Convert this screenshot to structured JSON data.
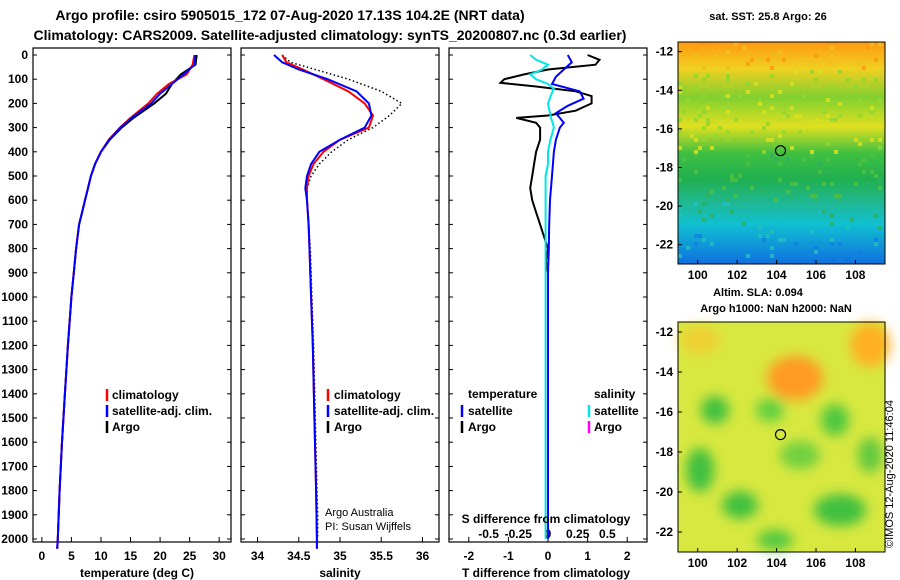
{
  "title": {
    "line1": "Argo profile: csiro 5905015_172 07-Aug-2020 17.13S 104.2E (NRT data)",
    "line2": "Climatology: CARS2009. Satellite-adjusted climatology: synTS_20200807.nc (0.3d earlier)"
  },
  "depth_ticks": [
    "0",
    "100",
    "200",
    "300",
    "400",
    "500",
    "600",
    "700",
    "800",
    "900",
    "1000",
    "1100",
    "1200",
    "1300",
    "1400",
    "1500",
    "1600",
    "1700",
    "1800",
    "1900",
    "2000"
  ],
  "colors": {
    "argo": "#000000",
    "climatology": "#ff0000",
    "satellite": "#0000ff",
    "sat_salinity": "#00e5e5",
    "argo_salinity": "#ff00ff"
  },
  "chart_data": [
    {
      "type": "line",
      "name": "temperature",
      "xlabel": "temperature (deg C)",
      "xticks": [
        "0",
        "5",
        "10",
        "15",
        "20",
        "25",
        "30"
      ],
      "xlim": [
        -1.5,
        32
      ],
      "ylim": [
        2080,
        0
      ],
      "legend": [
        "climatology",
        "satellite-adj. clim.",
        "Argo"
      ],
      "series": [
        {
          "name": "Argo",
          "depth": [
            0,
            40,
            80,
            120,
            160,
            200,
            260,
            300,
            350,
            400,
            450,
            500,
            550,
            600,
            650,
            700,
            800,
            900,
            1000,
            1200,
            1400,
            1600,
            1800,
            2000,
            2040
          ],
          "values": [
            26.2,
            26.0,
            23.5,
            22.0,
            21.0,
            19.0,
            15.5,
            13.5,
            11.5,
            10.0,
            9.0,
            8.3,
            7.8,
            7.3,
            6.8,
            6.3,
            5.8,
            5.4,
            5.0,
            4.4,
            3.9,
            3.4,
            3.0,
            2.7,
            2.6
          ]
        },
        {
          "name": "climatology",
          "depth": [
            0,
            40,
            80,
            120,
            160,
            200,
            260,
            300,
            350,
            400,
            450,
            500,
            550,
            600,
            650,
            700,
            800,
            900,
            1000,
            1200,
            1400,
            1600,
            1800,
            2000,
            2040
          ],
          "values": [
            25.8,
            25.5,
            24.5,
            21.5,
            19.5,
            18.0,
            15.0,
            13.2,
            11.3,
            10.0,
            9.0,
            8.3,
            7.8,
            7.3,
            6.8,
            6.3,
            5.8,
            5.4,
            5.0,
            4.4,
            3.9,
            3.4,
            3.0,
            2.7,
            2.6
          ]
        },
        {
          "name": "satellite-adj. clim.",
          "depth": [
            0,
            40,
            80,
            120,
            160,
            200,
            260,
            300,
            350,
            400,
            450,
            500,
            550,
            600,
            650,
            700,
            800,
            900,
            1000,
            1200,
            1400,
            1600,
            1800,
            2000,
            2040
          ],
          "values": [
            26.0,
            25.8,
            24.0,
            22.0,
            20.0,
            18.5,
            15.2,
            13.3,
            11.4,
            10.0,
            9.0,
            8.3,
            7.8,
            7.3,
            6.8,
            6.3,
            5.8,
            5.4,
            5.0,
            4.4,
            3.9,
            3.4,
            3.0,
            2.7,
            2.6
          ]
        }
      ]
    },
    {
      "type": "line",
      "name": "salinity",
      "xlabel": "salinity",
      "xticks": [
        "34",
        "34.5",
        "35",
        "35.5",
        "36"
      ],
      "xlim": [
        33.8,
        36.2
      ],
      "ylim": [
        2080,
        0
      ],
      "legend": [
        "climatology",
        "satellite-adj. clim.",
        "Argo"
      ],
      "annotations": [
        "Argo Australia",
        "PI: Susan Wijffels"
      ],
      "series": [
        {
          "name": "Argo",
          "depth": [
            0,
            30,
            60,
            100,
            150,
            200,
            250,
            300,
            350,
            400,
            450,
            500,
            550,
            600,
            700,
            800,
            1000,
            1200,
            1500,
            1800,
            1900,
            2000
          ],
          "values": [
            34.3,
            34.4,
            34.7,
            35.1,
            35.5,
            35.75,
            35.6,
            35.4,
            35.1,
            34.9,
            34.75,
            34.65,
            34.6,
            34.6,
            34.62,
            34.64,
            34.66,
            34.68,
            34.7,
            34.72,
            34.73,
            34.73
          ]
        },
        {
          "name": "climatology",
          "depth": [
            0,
            30,
            60,
            100,
            150,
            200,
            250,
            300,
            350,
            400,
            450,
            500,
            550,
            600,
            700,
            800,
            1000,
            1200,
            1500,
            1800,
            2000,
            2040
          ],
          "values": [
            34.3,
            34.35,
            34.55,
            34.8,
            35.1,
            35.3,
            35.4,
            35.35,
            35.0,
            34.8,
            34.68,
            34.62,
            34.6,
            34.6,
            34.62,
            34.63,
            34.65,
            34.67,
            34.69,
            34.71,
            34.72,
            34.72
          ]
        },
        {
          "name": "satellite-adj. clim.",
          "depth": [
            0,
            30,
            60,
            100,
            150,
            200,
            250,
            300,
            350,
            400,
            450,
            500,
            550,
            600,
            700,
            800,
            1000,
            1200,
            1500,
            1800,
            2000,
            2040
          ],
          "values": [
            34.2,
            34.3,
            34.5,
            34.85,
            35.2,
            35.35,
            35.38,
            35.3,
            35.0,
            34.75,
            34.65,
            34.6,
            34.58,
            34.6,
            34.62,
            34.63,
            34.65,
            34.67,
            34.69,
            34.71,
            34.72,
            34.72
          ]
        }
      ]
    },
    {
      "type": "line",
      "name": "difference",
      "xlabel": "T difference from climatology",
      "xlabel2": "S difference from climatology",
      "xticks": [
        "-2",
        "-1",
        "0",
        "1",
        "2"
      ],
      "xticks2": [
        "-0.5",
        "-0.25",
        "0",
        "0.25",
        "0.5"
      ],
      "xlim": [
        -2.5,
        2.5
      ],
      "ylim": [
        2080,
        0
      ],
      "legend_headers": [
        "temperature",
        "salinity"
      ],
      "legend_left": [
        "satellite",
        "Argo"
      ],
      "legend_right": [
        "satellite",
        "Argo"
      ],
      "series": [
        {
          "name": "T Argo",
          "depth": [
            0,
            20,
            40,
            60,
            80,
            100,
            115,
            130,
            150,
            170,
            200,
            215,
            230,
            250,
            260,
            280,
            300,
            320,
            350,
            400,
            450,
            500,
            550,
            600,
            650,
            700,
            750,
            800,
            850,
            900
          ],
          "values": [
            1.0,
            1.3,
            1.2,
            0.0,
            -0.6,
            -1.1,
            -1.2,
            -0.3,
            0.7,
            1.1,
            1.1,
            0.9,
            0.7,
            0.0,
            -0.8,
            -0.3,
            -0.2,
            -0.2,
            -0.2,
            -0.3,
            -0.35,
            -0.4,
            -0.45,
            -0.4,
            -0.3,
            -0.2,
            -0.1,
            0.0,
            -0.05,
            0.0
          ]
        },
        {
          "name": "T satellite",
          "depth": [
            0,
            30,
            60,
            90,
            120,
            150,
            180,
            210,
            240,
            280,
            300,
            350,
            400,
            500,
            600,
            700,
            800,
            900
          ],
          "values": [
            0.5,
            0.6,
            0.4,
            0.2,
            0.1,
            0.8,
            0.9,
            0.5,
            0.2,
            0.4,
            0.3,
            0.2,
            0.15,
            0.1,
            0.05,
            0.03,
            0.02,
            0.0
          ]
        },
        {
          "name": "S satellite",
          "depth": [
            0,
            20,
            40,
            60,
            80,
            100,
            120,
            140,
            160,
            200,
            250,
            300,
            350,
            400,
            450,
            500,
            600,
            700,
            800,
            1000,
            1200,
            1500,
            1800,
            2000
          ],
          "values": [
            -0.15,
            -0.1,
            0.0,
            -0.05,
            -0.15,
            -0.1,
            0.0,
            0.05,
            0.03,
            0.0,
            0.02,
            0.05,
            0.02,
            0.0,
            0.0,
            -0.02,
            -0.02,
            -0.02,
            -0.02,
            -0.02,
            -0.02,
            -0.02,
            -0.02,
            -0.02
          ]
        },
        {
          "name": "S Argo",
          "depth": [
            900,
            1000,
            1200,
            1400,
            1600,
            1800,
            2000
          ],
          "values": [
            0.0,
            0.0,
            0.0,
            0.0,
            0.0,
            0.0,
            0.0
          ]
        }
      ]
    },
    {
      "type": "heatmap",
      "name": "sst-map",
      "title": "sat. SST: 25.8 Argo: 26",
      "xticks": [
        "100",
        "102",
        "104",
        "106",
        "108"
      ],
      "yticks": [
        "-12",
        "-14",
        "-16",
        "-18",
        "-20",
        "-22"
      ],
      "xlim": [
        99,
        109.5
      ],
      "ylim": [
        -23,
        -11.5
      ],
      "marker": {
        "lon": 104.2,
        "lat": -17.13
      }
    },
    {
      "type": "heatmap",
      "name": "sla-map",
      "title": "Altim. SLA: 0.094",
      "subtitle": "Argo h1000: NaN h2000: NaN",
      "xticks": [
        "100",
        "102",
        "104",
        "106",
        "108"
      ],
      "yticks": [
        "-12",
        "-14",
        "-16",
        "-18",
        "-20",
        "-22"
      ],
      "xlim": [
        99,
        109.5
      ],
      "ylim": [
        -23,
        -11.5
      ],
      "marker": {
        "lon": 104.2,
        "lat": -17.13
      }
    }
  ],
  "credit": "©IMOS 12-Aug-2020 11:46:04"
}
